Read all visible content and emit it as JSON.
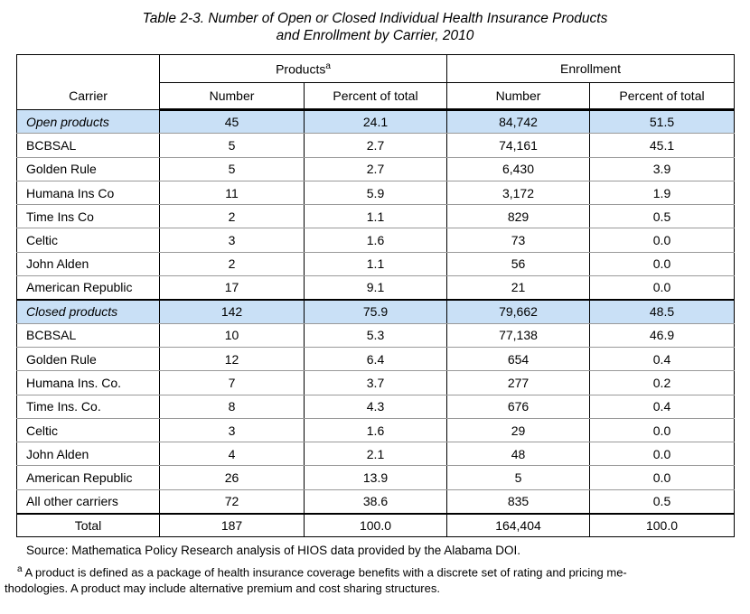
{
  "title": {
    "line1": "Table 2-3. Number of Open or Closed Individual Health Insurance Products",
    "line2": "and Enrollment by Carrier, 2010"
  },
  "table": {
    "header": {
      "carrier": "Carrier",
      "products_label": "Products",
      "products_superscript": "a",
      "enrollment_label": "Enrollment",
      "number": "Number",
      "percent_of_total": "Percent of total"
    },
    "rows": [
      {
        "type": "section",
        "carrier": "Open products",
        "p_number": "45",
        "p_percent": "24.1",
        "e_number": "84,742",
        "e_percent": "51.5"
      },
      {
        "type": "data",
        "carrier": "BCBSAL",
        "p_number": "5",
        "p_percent": "2.7",
        "e_number": "74,161",
        "e_percent": "45.1"
      },
      {
        "type": "data",
        "carrier": "Golden Rule",
        "p_number": "5",
        "p_percent": "2.7",
        "e_number": "6,430",
        "e_percent": "3.9"
      },
      {
        "type": "data",
        "carrier": "Humana Ins Co",
        "p_number": "11",
        "p_percent": "5.9",
        "e_number": "3,172",
        "e_percent": "1.9"
      },
      {
        "type": "data",
        "carrier": "Time Ins Co",
        "p_number": "2",
        "p_percent": "1.1",
        "e_number": "829",
        "e_percent": "0.5"
      },
      {
        "type": "data",
        "carrier": "Celtic",
        "p_number": "3",
        "p_percent": "1.6",
        "e_number": "73",
        "e_percent": "0.0"
      },
      {
        "type": "data",
        "carrier": "John Alden",
        "p_number": "2",
        "p_percent": "1.1",
        "e_number": "56",
        "e_percent": "0.0"
      },
      {
        "type": "data",
        "carrier": "American Republic",
        "p_number": "17",
        "p_percent": "9.1",
        "e_number": "21",
        "e_percent": "0.0"
      },
      {
        "type": "section",
        "carrier": "Closed products",
        "p_number": "142",
        "p_percent": "75.9",
        "e_number": "79,662",
        "e_percent": "48.5"
      },
      {
        "type": "data",
        "carrier": "BCBSAL",
        "p_number": "10",
        "p_percent": "5.3",
        "e_number": "77,138",
        "e_percent": "46.9"
      },
      {
        "type": "data",
        "carrier": "Golden Rule",
        "p_number": "12",
        "p_percent": "6.4",
        "e_number": "654",
        "e_percent": "0.4"
      },
      {
        "type": "data",
        "carrier": "Humana Ins. Co.",
        "p_number": "7",
        "p_percent": "3.7",
        "e_number": "277",
        "e_percent": "0.2"
      },
      {
        "type": "data",
        "carrier": "Time Ins. Co.",
        "p_number": "8",
        "p_percent": "4.3",
        "e_number": "676",
        "e_percent": "0.4"
      },
      {
        "type": "data",
        "carrier": "Celtic",
        "p_number": "3",
        "p_percent": "1.6",
        "e_number": "29",
        "e_percent": "0.0"
      },
      {
        "type": "data",
        "carrier": "John Alden",
        "p_number": "4",
        "p_percent": "2.1",
        "e_number": "48",
        "e_percent": "0.0"
      },
      {
        "type": "data",
        "carrier": "American Republic",
        "p_number": "26",
        "p_percent": "13.9",
        "e_number": "5",
        "e_percent": "0.0"
      },
      {
        "type": "data",
        "carrier": "All other carriers",
        "p_number": "72",
        "p_percent": "38.6",
        "e_number": "835",
        "e_percent": "0.5"
      },
      {
        "type": "total",
        "carrier": "Total",
        "p_number": "187",
        "p_percent": "100.0",
        "e_number": "164,404",
        "e_percent": "100.0"
      }
    ]
  },
  "source": "Source: Mathematica Policy Research analysis of HIOS data provided by the Alabama DOI.",
  "footnote": {
    "marker": "a",
    "line1": "A product is defined as a package of health insurance coverage benefits with a discrete set of rating and pricing me-",
    "line2": "thodologies. A product may include alternative premium and cost sharing structures."
  },
  "colors": {
    "section_row_bg": "#c9e0f6"
  }
}
